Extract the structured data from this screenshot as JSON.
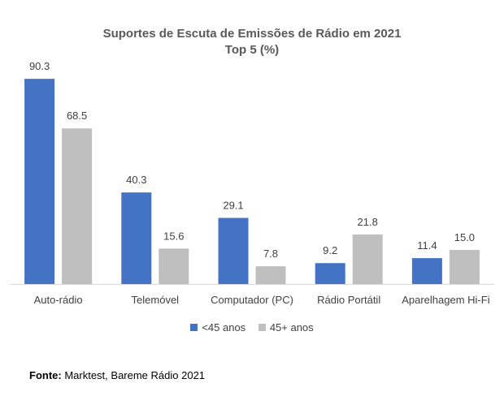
{
  "chart_data": {
    "type": "bar",
    "title": "Suportes de Escuta de Emissões de Rádio em 2021",
    "subtitle": "Top 5 (%)",
    "categories": [
      "Auto-rádio",
      "Telemóvel",
      "Computador (PC)",
      "Rádio Portátil",
      "Aparelhagem Hi-Fi"
    ],
    "series": [
      {
        "name": "<45 anos",
        "values": [
          90.3,
          40.3,
          29.1,
          9.2,
          11.4
        ],
        "color": "#4472C4"
      },
      {
        "name": "45+ anos",
        "values": [
          68.5,
          15.6,
          7.8,
          21.8,
          15.0
        ],
        "color": "#BFBFBF"
      }
    ],
    "xlabel": "",
    "ylabel": "",
    "ylim": [
      0,
      100
    ],
    "grid": false,
    "legend_position": "bottom"
  },
  "source": {
    "label": "Fonte:",
    "text": " Marktest, Bareme Rádio 2021"
  }
}
